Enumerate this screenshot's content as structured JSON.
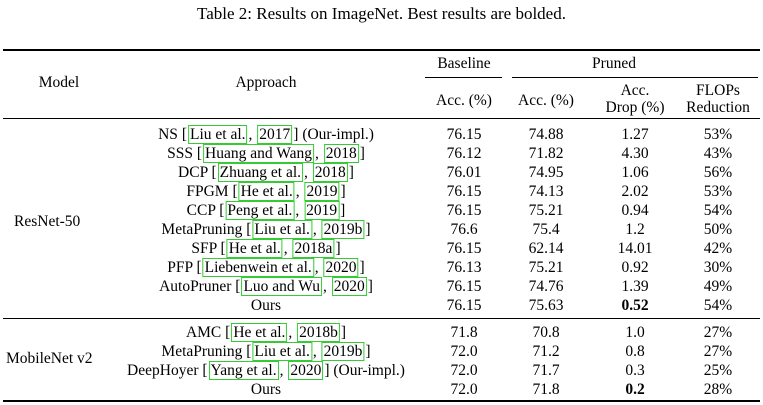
{
  "caption": "Table 2: Results on ImageNet. Best results are bolded.",
  "header": {
    "model": "Model",
    "approach": "Approach",
    "baseline": "Baseline",
    "pruned": "Pruned",
    "baseline_acc": "Acc. (%)",
    "pruned_acc": "Acc. (%)",
    "acc_drop_1": "Acc.",
    "acc_drop_2": "Drop (%)",
    "flops_1": "FLOPs",
    "flops_2": "Reduction"
  },
  "groups": [
    {
      "model": "ResNet-50",
      "rows": [
        {
          "name": "NS",
          "cite": [
            "Liu et al.",
            "2017"
          ],
          "suffix": "(Our-impl.)",
          "baseline": "76.15",
          "pruned": "74.88",
          "drop": "1.27",
          "flops": "53%"
        },
        {
          "name": "SSS",
          "cite": [
            "Huang and Wang",
            "2018"
          ],
          "suffix": "",
          "baseline": "76.12",
          "pruned": "71.82",
          "drop": "4.30",
          "flops": "43%"
        },
        {
          "name": "DCP",
          "cite": [
            "Zhuang et al.",
            "2018"
          ],
          "suffix": "",
          "baseline": "76.01",
          "pruned": "74.95",
          "drop": "1.06",
          "flops": "56%"
        },
        {
          "name": "FPGM",
          "cite": [
            "He et al.",
            "2019"
          ],
          "suffix": "",
          "baseline": "76.15",
          "pruned": "74.13",
          "drop": "2.02",
          "flops": "53%"
        },
        {
          "name": "CCP",
          "cite": [
            "Peng et al.",
            "2019"
          ],
          "suffix": "",
          "baseline": "76.15",
          "pruned": "75.21",
          "drop": "0.94",
          "flops": "54%"
        },
        {
          "name": "MetaPruning",
          "cite": [
            "Liu et al.",
            "2019b"
          ],
          "suffix": "",
          "baseline": "76.6",
          "pruned": "75.4",
          "drop": "1.2",
          "flops": "50%"
        },
        {
          "name": "SFP",
          "cite": [
            "He et al.",
            "2018a"
          ],
          "suffix": "",
          "baseline": "76.15",
          "pruned": "62.14",
          "drop": "14.01",
          "flops": "42%"
        },
        {
          "name": "PFP",
          "cite": [
            "Liebenwein et al.",
            "2020"
          ],
          "suffix": "",
          "baseline": "76.13",
          "pruned": "75.21",
          "drop": "0.92",
          "flops": "30%"
        },
        {
          "name": "AutoPruner",
          "cite": [
            "Luo and Wu",
            "2020"
          ],
          "suffix": "",
          "baseline": "76.15",
          "pruned": "74.76",
          "drop": "1.39",
          "flops": "49%"
        },
        {
          "name": "Ours",
          "cite": null,
          "suffix": "",
          "baseline": "76.15",
          "pruned": "75.63",
          "drop": "0.52",
          "drop_bold": true,
          "flops": "54%"
        }
      ]
    },
    {
      "model": "MobileNet v2",
      "rows": [
        {
          "name": "AMC",
          "cite": [
            "He et al.",
            "2018b"
          ],
          "suffix": "",
          "baseline": "71.8",
          "pruned": "70.8",
          "drop": "1.0",
          "flops": "27%"
        },
        {
          "name": "MetaPruning",
          "cite": [
            "Liu et al.",
            "2019b"
          ],
          "suffix": "",
          "baseline": "72.0",
          "pruned": "71.2",
          "drop": "0.8",
          "flops": "27%"
        },
        {
          "name": "DeepHoyer",
          "cite": [
            "Yang et al.",
            "2020"
          ],
          "suffix": "(Our-impl.)",
          "baseline": "72.0",
          "pruned": "71.7",
          "drop": "0.3",
          "flops": "25%"
        },
        {
          "name": "Ours",
          "cite": null,
          "suffix": "",
          "baseline": "72.0",
          "pruned": "71.8",
          "drop": "0.2",
          "drop_bold": true,
          "flops": "28%"
        }
      ]
    }
  ]
}
